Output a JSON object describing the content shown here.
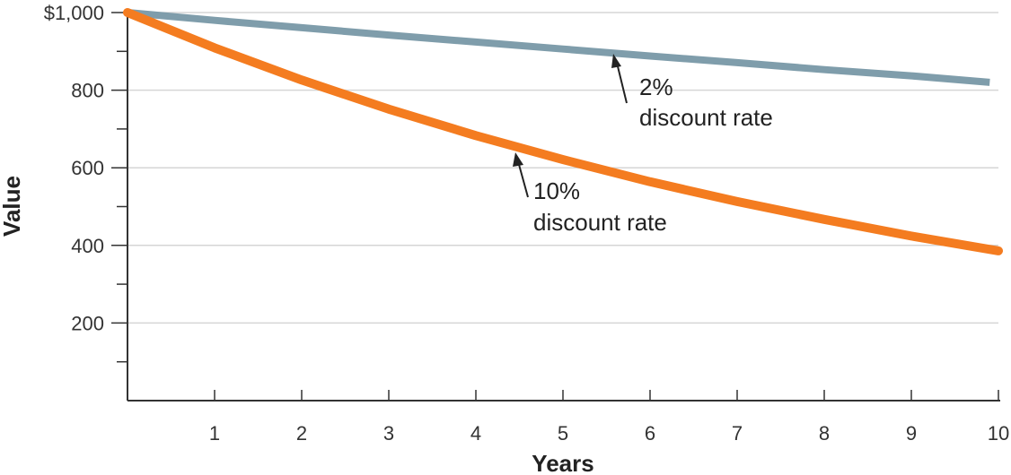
{
  "chart_data": {
    "type": "line",
    "xlabel": "Years",
    "ylabel": "Value",
    "xlim": [
      0,
      10
    ],
    "ylim": [
      0,
      1000
    ],
    "x_ticks": [
      "1",
      "2",
      "3",
      "4",
      "5",
      "6",
      "7",
      "8",
      "9",
      "10"
    ],
    "y_ticks": [
      {
        "value": 200,
        "label": "200"
      },
      {
        "value": 400,
        "label": "400"
      },
      {
        "value": 600,
        "label": "600"
      },
      {
        "value": 800,
        "label": "800"
      },
      {
        "value": 1000,
        "label": "$1,000"
      }
    ],
    "grid": true,
    "series": [
      {
        "key": "rate2",
        "color": "#7f9dab",
        "x": [
          0,
          1,
          2,
          3,
          4,
          5,
          6,
          7,
          8,
          9,
          9.9
        ],
        "values": [
          1000,
          980,
          961,
          942,
          924,
          906,
          888,
          871,
          853,
          837,
          820
        ]
      },
      {
        "key": "rate10",
        "color": "#f47c20",
        "x": [
          0,
          1,
          2,
          3,
          4,
          5,
          6,
          7,
          8,
          9,
          10
        ],
        "values": [
          1000,
          909,
          826,
          751,
          683,
          621,
          564,
          513,
          467,
          424,
          386
        ]
      }
    ],
    "annotations": [
      {
        "series": "rate2",
        "line1": "2%",
        "line2": "discount rate"
      },
      {
        "series": "rate10",
        "line1": "10%",
        "line2": "discount rate"
      }
    ]
  }
}
